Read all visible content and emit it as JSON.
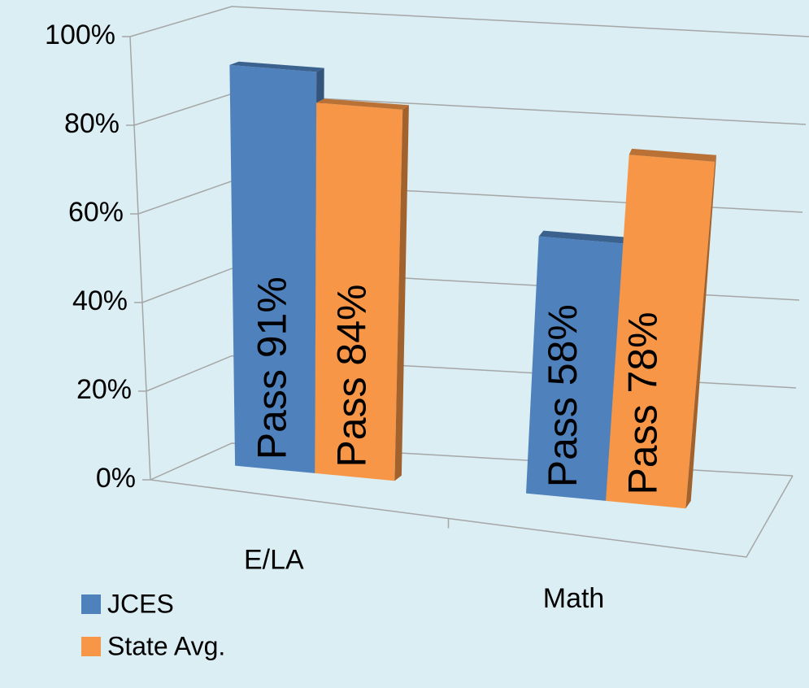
{
  "chart_data": {
    "type": "bar3d",
    "categories": [
      "E/LA",
      "Math"
    ],
    "series": [
      {
        "name": "JCES",
        "color": "#4f81bd",
        "values": [
          91,
          58
        ],
        "value_labels": [
          "Pass 91%",
          "Pass 58%"
        ]
      },
      {
        "name": "State Avg.",
        "color": "#f79646",
        "values": [
          84,
          78
        ],
        "value_labels": [
          "Pass 84%",
          "Pass 78%"
        ]
      }
    ],
    "ylim": [
      0,
      100
    ],
    "yticks": [
      {
        "value": 0,
        "label": "0%"
      },
      {
        "value": 20,
        "label": "20%"
      },
      {
        "value": 40,
        "label": "40%"
      },
      {
        "value": 60,
        "label": "60%"
      },
      {
        "value": 80,
        "label": "80%"
      },
      {
        "value": 100,
        "label": "100%"
      }
    ],
    "grid": true
  }
}
